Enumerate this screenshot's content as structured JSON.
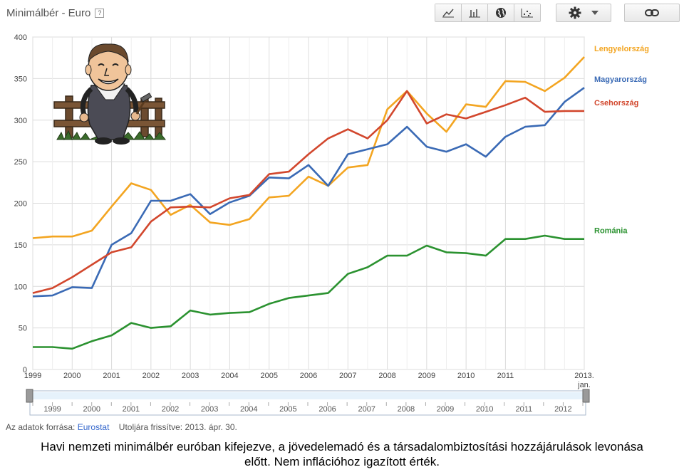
{
  "header": {
    "title": "Minimálbér - Euro",
    "help_label": "?"
  },
  "toolbar": {
    "buttons": [
      {
        "name": "line-chart-icon"
      },
      {
        "name": "bar-chart-icon"
      },
      {
        "name": "globe-icon"
      },
      {
        "name": "scatter-chart-icon"
      }
    ]
  },
  "footer": {
    "source_label": "Az adatok forrása:",
    "source_link": "Eurostat",
    "updated_label": "Utoljára frissítve: 2013. ápr. 30."
  },
  "caption": {
    "line1": "Havi nemzeti minimálbér euróban kifejezve, a jövedelemadó és a társadalombiztosítási hozzájárulások levonása",
    "line2": "előtt. Nem inflációhoz igazított érték."
  },
  "chart_data": {
    "type": "line",
    "ylim": [
      0,
      400
    ],
    "yticks": [
      0,
      50,
      100,
      150,
      200,
      250,
      300,
      350,
      400
    ],
    "xlim": [
      1999,
      2013
    ],
    "xticks": [
      "1999",
      "2000",
      "2001",
      "2002",
      "2003",
      "2004",
      "2005",
      "2006",
      "2007",
      "2008",
      "2009",
      "2010",
      "2011"
    ],
    "x_end_label": [
      "2013.",
      "jan."
    ],
    "x": [
      1999,
      1999.5,
      2000,
      2000.5,
      2001,
      2001.5,
      2002,
      2002.5,
      2003,
      2003.5,
      2004,
      2004.5,
      2005,
      2005.5,
      2006,
      2006.5,
      2007,
      2007.5,
      2008,
      2008.5,
      2009,
      2009.5,
      2010,
      2010.5,
      2011,
      2011.5,
      2012,
      2012.5,
      2013
    ],
    "series": [
      {
        "name": "Lengyelország",
        "color": "#f3a521",
        "values": [
          158,
          160,
          160,
          167,
          196,
          224,
          216,
          186,
          198,
          177,
          174,
          181,
          207,
          209,
          232,
          221,
          243,
          246,
          313,
          335,
          308,
          286,
          319,
          316,
          347,
          346,
          335,
          351,
          376
        ]
      },
      {
        "name": "Magyarország",
        "color": "#3a6ab5",
        "values": [
          88,
          89,
          99,
          98,
          150,
          164,
          203,
          203,
          211,
          187,
          201,
          209,
          231,
          230,
          246,
          221,
          259,
          265,
          271,
          292,
          268,
          262,
          271,
          256,
          280,
          292,
          294,
          322,
          339
        ]
      },
      {
        "name": "Csehország",
        "color": "#d2472d",
        "values": [
          92,
          98,
          111,
          126,
          141,
          147,
          178,
          195,
          196,
          195,
          206,
          210,
          235,
          238,
          259,
          278,
          289,
          278,
          300,
          335,
          296,
          307,
          302,
          310,
          318,
          327,
          310,
          311,
          311
        ]
      },
      {
        "name": "Románia",
        "color": "#2b9230",
        "values": [
          27,
          27,
          25,
          34,
          41,
          56,
          50,
          52,
          71,
          66,
          68,
          69,
          79,
          86,
          89,
          92,
          115,
          123,
          137,
          137,
          149,
          141,
          140,
          137,
          157,
          157,
          161,
          157,
          157
        ]
      }
    ],
    "navigator_ticks": [
      "1999",
      "2000",
      "2001",
      "2002",
      "2003",
      "2004",
      "2005",
      "2006",
      "2007",
      "2008",
      "2009",
      "2010",
      "2011",
      "2012"
    ]
  }
}
